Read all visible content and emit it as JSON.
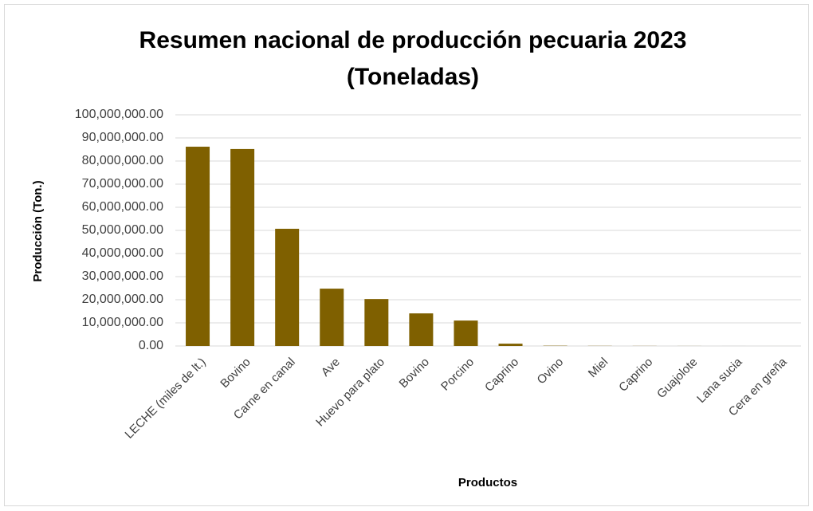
{
  "chart_data": {
    "type": "bar",
    "title": "Resumen nacional de producción pecuaria 2023",
    "subtitle": "(Toneladas)",
    "x_label": "Productos",
    "y_label": "Producción (Ton.)",
    "categories": [
      "LECHE (miles de lt.)",
      "Bovino",
      "Carne en canal",
      "Ave",
      "Huevo para plato",
      "Bovino",
      "Porcino",
      "Caprino",
      "Ovino",
      "Miel",
      "Caprino",
      "Guajolote",
      "Lana sucia",
      "Cera en greña"
    ],
    "values": [
      86200000,
      85200000,
      50700000,
      24800000,
      20300000,
      14100000,
      11000000,
      1000000,
      120000,
      60000,
      40000,
      20000,
      4000,
      2000
    ],
    "color": "#7f6000",
    "ylim": [
      0,
      100000000
    ],
    "yticks": [
      {
        "value": 0,
        "label": "0.00"
      },
      {
        "value": 10000000,
        "label": "10,000,000.00"
      },
      {
        "value": 20000000,
        "label": "20,000,000.00"
      },
      {
        "value": 30000000,
        "label": "30,000,000.00"
      },
      {
        "value": 40000000,
        "label": "40,000,000.00"
      },
      {
        "value": 50000000,
        "label": "50,000,000.00"
      },
      {
        "value": 60000000,
        "label": "60,000,000.00"
      },
      {
        "value": 70000000,
        "label": "70,000,000.00"
      },
      {
        "value": 80000000,
        "label": "80,000,000.00"
      },
      {
        "value": 90000000,
        "label": "90,000,000.00"
      },
      {
        "value": 100000000,
        "label": "100,000,000.00"
      }
    ],
    "grid": true
  }
}
